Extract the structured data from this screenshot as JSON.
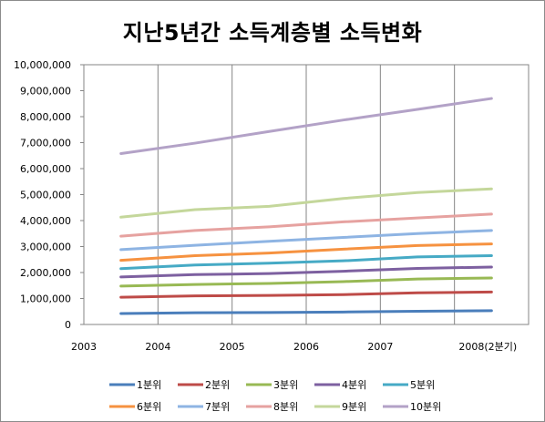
{
  "chart_data": {
    "type": "line",
    "title": "지난5년간 소득계층별 소득변화",
    "xlabel": "",
    "ylabel": "",
    "categories": [
      "2003",
      "2004",
      "2005",
      "2006",
      "2007",
      "2008(2분기)"
    ],
    "ylim": [
      0,
      10000000
    ],
    "yticks": [
      "0",
      "1,000,000",
      "2,000,000",
      "3,000,000",
      "4,000,000",
      "5,000,000",
      "6,000,000",
      "7,000,000",
      "8,000,000",
      "9,000,000",
      "10,000,000"
    ],
    "grid": "vertical",
    "legend_position": "bottom",
    "series": [
      {
        "name": "1분위",
        "color": "#4a7ebb",
        "values": [
          420000,
          450000,
          460000,
          480000,
          510000,
          530000
        ]
      },
      {
        "name": "2분위",
        "color": "#be4b48",
        "values": [
          1050000,
          1100000,
          1120000,
          1150000,
          1220000,
          1250000
        ]
      },
      {
        "name": "3분위",
        "color": "#98b954",
        "values": [
          1480000,
          1540000,
          1580000,
          1650000,
          1750000,
          1790000
        ]
      },
      {
        "name": "4분위",
        "color": "#7d60a0",
        "values": [
          1830000,
          1920000,
          1960000,
          2050000,
          2160000,
          2210000
        ]
      },
      {
        "name": "5분위",
        "color": "#46aac5",
        "values": [
          2150000,
          2290000,
          2360000,
          2450000,
          2600000,
          2650000
        ]
      },
      {
        "name": "6분위",
        "color": "#f69240",
        "values": [
          2470000,
          2650000,
          2750000,
          2900000,
          3040000,
          3100000
        ]
      },
      {
        "name": "7분위",
        "color": "#8eb4e3",
        "values": [
          2880000,
          3050000,
          3200000,
          3350000,
          3500000,
          3620000
        ]
      },
      {
        "name": "8분위",
        "color": "#e6a2a0",
        "values": [
          3400000,
          3620000,
          3760000,
          3950000,
          4100000,
          4250000
        ]
      },
      {
        "name": "9분위",
        "color": "#c4d79b",
        "values": [
          4130000,
          4420000,
          4550000,
          4850000,
          5080000,
          5220000
        ]
      },
      {
        "name": "10분위",
        "color": "#b3a2c7",
        "values": [
          6580000,
          6980000,
          7430000,
          7870000,
          8280000,
          8700000
        ]
      }
    ]
  }
}
